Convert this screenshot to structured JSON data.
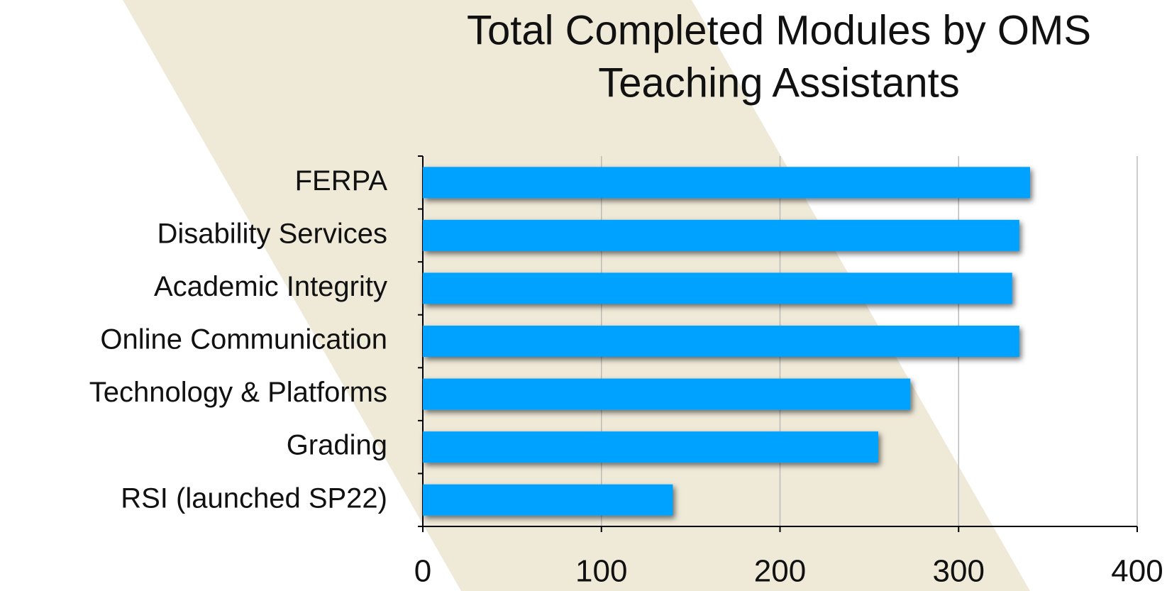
{
  "chart_data": {
    "type": "bar",
    "orientation": "horizontal",
    "title": [
      "Total Completed Modules by OMS",
      "Teaching Assistants"
    ],
    "categories": [
      "FERPA",
      "Disability Services",
      "Academic Integrity",
      "Online Communication",
      "Technology & Platforms",
      "Grading",
      "RSI (launched SP22)"
    ],
    "values": [
      340,
      334,
      330,
      334,
      273,
      255,
      140
    ],
    "color": "#00a2ff",
    "xlim": [
      0,
      400
    ],
    "xticks": [
      0,
      100,
      200,
      300,
      400
    ],
    "grid": true
  }
}
